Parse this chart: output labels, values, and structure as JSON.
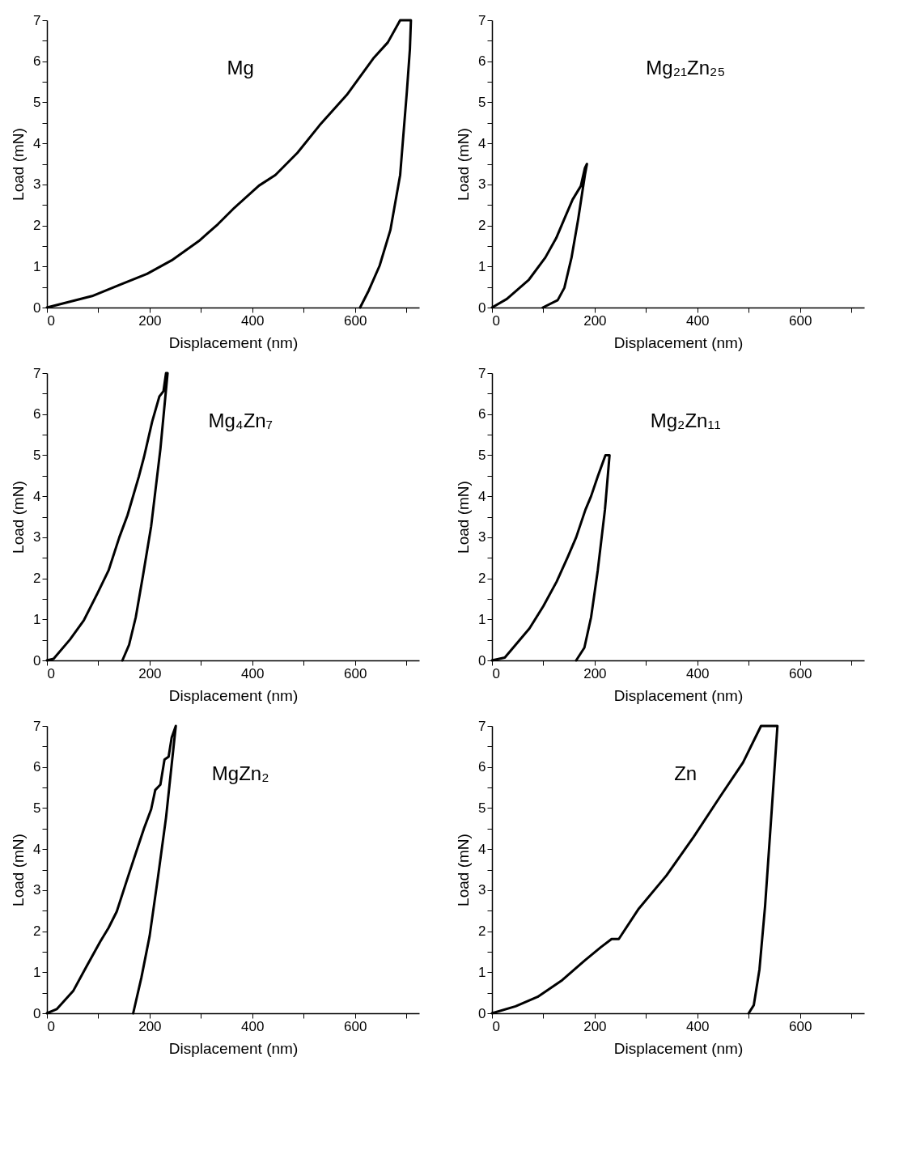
{
  "chart_data": [
    {
      "type": "line",
      "title": "Mg",
      "xlabel": "Displacement (nm)",
      "ylabel": "Load (mN)",
      "xlim": [
        0,
        725
      ],
      "ylim": [
        0,
        7
      ],
      "xticks": [
        0,
        {
          "value": 100,
          "label": null
        },
        200,
        {
          "value": 300,
          "label": null
        },
        400,
        {
          "value": 500,
          "label": null
        },
        600,
        {
          "value": 700,
          "label": null
        }
      ],
      "yticks": [
        0,
        {
          "value": 0.5,
          "label": null
        },
        1,
        {
          "value": 1.5,
          "label": null
        },
        2,
        {
          "value": 2.5,
          "label": null
        },
        3,
        {
          "value": 3.5,
          "label": null
        },
        4,
        {
          "value": 4.5,
          "label": null
        },
        5,
        {
          "value": 5.5,
          "label": null
        },
        6,
        {
          "value": 6.5,
          "label": null
        },
        7
      ],
      "x": [
        0,
        88,
        141,
        195,
        243,
        296,
        333,
        365,
        413,
        445,
        488,
        531,
        584,
        637,
        664,
        688,
        709,
        707,
        701,
        688,
        669,
        648,
        627,
        610
      ],
      "series": [
        {
          "color": "#000000",
          "values": [
            0,
            0.28,
            0.55,
            0.82,
            1.15,
            1.62,
            2.03,
            2.43,
            2.97,
            3.23,
            3.77,
            4.44,
            5.18,
            6.09,
            6.46,
            7,
            7,
            6.3,
            5.25,
            3.23,
            1.89,
            1.02,
            0.42,
            0
          ]
        }
      ]
    },
    {
      "type": "line",
      "title": "Mg₂₁Zn₂₅",
      "xlabel": "Displacement (nm)",
      "ylabel": "Load (mN)",
      "xlim": [
        0,
        725
      ],
      "ylim": [
        0,
        7
      ],
      "xticks": [
        0,
        {
          "value": 100,
          "label": null
        },
        200,
        {
          "value": 300,
          "label": null
        },
        400,
        {
          "value": 500,
          "label": null
        },
        600,
        {
          "value": 700,
          "label": null
        }
      ],
      "yticks": [
        0,
        {
          "value": 0.5,
          "label": null
        },
        1,
        {
          "value": 1.5,
          "label": null
        },
        2,
        {
          "value": 2.5,
          "label": null
        },
        3,
        {
          "value": 3.5,
          "label": null
        },
        4,
        {
          "value": 4.5,
          "label": null
        },
        5,
        {
          "value": 5.5,
          "label": null
        },
        6,
        {
          "value": 6.5,
          "label": null
        },
        7
      ],
      "x": [
        0,
        29,
        72,
        104,
        125,
        141,
        157,
        173,
        181,
        185,
        181,
        168,
        155,
        141,
        128,
        99
      ],
      "series": [
        {
          "color": "#000000",
          "values": [
            0,
            0.21,
            0.68,
            1.22,
            1.69,
            2.16,
            2.63,
            2.96,
            3.4,
            3.5,
            3.23,
            2.16,
            1.22,
            0.48,
            0.18,
            0
          ]
        }
      ]
    },
    {
      "type": "line",
      "title": "Mg₄Zn₇",
      "xlabel": "Displacement (nm)",
      "ylabel": "Load (mN)",
      "xlim": [
        0,
        725
      ],
      "ylim": [
        0,
        7
      ],
      "xticks": [
        0,
        {
          "value": 100,
          "label": null
        },
        200,
        {
          "value": 300,
          "label": null
        },
        400,
        {
          "value": 500,
          "label": null
        },
        600,
        {
          "value": 700,
          "label": null
        }
      ],
      "yticks": [
        0,
        {
          "value": 0.5,
          "label": null
        },
        1,
        {
          "value": 1.5,
          "label": null
        },
        2,
        {
          "value": 2.5,
          "label": null
        },
        3,
        {
          "value": 3.5,
          "label": null
        },
        4,
        {
          "value": 4.5,
          "label": null
        },
        5,
        {
          "value": 5.5,
          "label": null
        },
        6,
        {
          "value": 6.5,
          "label": null
        },
        7
      ],
      "x": [
        0,
        13,
        45,
        72,
        99,
        120,
        141,
        157,
        179,
        189,
        205,
        219,
        227,
        232,
        235,
        221,
        203,
        187,
        173,
        160,
        147
      ],
      "series": [
        {
          "color": "#000000",
          "values": [
            0,
            0.04,
            0.51,
            0.98,
            1.65,
            2.19,
            3.0,
            3.54,
            4.48,
            4.95,
            5.82,
            6.43,
            6.56,
            7,
            7,
            5.15,
            3.27,
            2.06,
            1.05,
            0.38,
            0
          ]
        }
      ]
    },
    {
      "type": "line",
      "title": "Mg₂Zn₁₁",
      "xlabel": "Displacement (nm)",
      "ylabel": "Load (mN)",
      "xlim": [
        0,
        725
      ],
      "ylim": [
        0,
        7
      ],
      "xticks": [
        0,
        {
          "value": 100,
          "label": null
        },
        200,
        {
          "value": 300,
          "label": null
        },
        400,
        {
          "value": 500,
          "label": null
        },
        600,
        {
          "value": 700,
          "label": null
        }
      ],
      "yticks": [
        0,
        {
          "value": 0.5,
          "label": null
        },
        1,
        {
          "value": 1.5,
          "label": null
        },
        2,
        {
          "value": 2.5,
          "label": null
        },
        3,
        {
          "value": 3.5,
          "label": null
        },
        4,
        {
          "value": 4.5,
          "label": null
        },
        5,
        {
          "value": 5.5,
          "label": null
        },
        6,
        {
          "value": 6.5,
          "label": null
        },
        7
      ],
      "x": [
        0,
        25,
        46,
        73,
        100,
        126,
        148,
        164,
        182,
        193,
        206,
        221,
        229,
        220,
        206,
        193,
        180,
        164
      ],
      "series": [
        {
          "color": "#000000",
          "values": [
            0,
            0.07,
            0.38,
            0.78,
            1.32,
            1.92,
            2.53,
            3.0,
            3.67,
            4.0,
            4.48,
            5,
            5,
            3.67,
            2.19,
            1.05,
            0.31,
            0
          ]
        }
      ]
    },
    {
      "type": "line",
      "title": "MgZn₂",
      "xlabel": "Displacement (nm)",
      "ylabel": "Load (mN)",
      "xlim": [
        0,
        725
      ],
      "ylim": [
        0,
        7
      ],
      "xticks": [
        0,
        {
          "value": 100,
          "label": null
        },
        200,
        {
          "value": 300,
          "label": null
        },
        400,
        {
          "value": 500,
          "label": null
        },
        600,
        {
          "value": 700,
          "label": null
        }
      ],
      "yticks": [
        0,
        {
          "value": 0.5,
          "label": null
        },
        1,
        {
          "value": 1.5,
          "label": null
        },
        2,
        {
          "value": 2.5,
          "label": null
        },
        3,
        {
          "value": 3.5,
          "label": null
        },
        4,
        {
          "value": 4.5,
          "label": null
        },
        5,
        {
          "value": 5.5,
          "label": null
        },
        6,
        {
          "value": 6.5,
          "label": null
        },
        7
      ],
      "x": [
        0,
        19,
        51,
        77,
        104,
        120,
        136,
        157,
        173,
        189,
        203,
        211,
        221,
        229,
        237,
        243,
        251,
        248,
        232,
        216,
        200,
        184,
        168
      ],
      "series": [
        {
          "color": "#000000",
          "values": [
            0,
            0.1,
            0.54,
            1.14,
            1.75,
            2.08,
            2.48,
            3.29,
            3.9,
            4.5,
            4.97,
            5.44,
            5.57,
            6.18,
            6.25,
            6.72,
            7,
            6.65,
            4.77,
            3.29,
            1.88,
            0.87,
            0
          ]
        }
      ]
    },
    {
      "type": "line",
      "title": "Zn",
      "xlabel": "Displacement (nm)",
      "ylabel": "Load (mN)",
      "xlim": [
        0,
        725
      ],
      "ylim": [
        0,
        7
      ],
      "xticks": [
        0,
        {
          "value": 100,
          "label": null
        },
        200,
        {
          "value": 300,
          "label": null
        },
        400,
        {
          "value": 500,
          "label": null
        },
        600,
        {
          "value": 700,
          "label": null
        }
      ],
      "yticks": [
        0,
        {
          "value": 0.5,
          "label": null
        },
        1,
        {
          "value": 1.5,
          "label": null
        },
        2,
        {
          "value": 2.5,
          "label": null
        },
        3,
        {
          "value": 3.5,
          "label": null
        },
        4,
        {
          "value": 4.5,
          "label": null
        },
        5,
        {
          "value": 5.5,
          "label": null
        },
        6,
        {
          "value": 6.5,
          "label": null
        },
        7
      ],
      "x": [
        0,
        46,
        89,
        137,
        180,
        212,
        233,
        247,
        286,
        340,
        393,
        446,
        489,
        524,
        556,
        545,
        532,
        521,
        510,
        500
      ],
      "series": [
        {
          "color": "#000000",
          "values": [
            0,
            0.17,
            0.4,
            0.81,
            1.28,
            1.61,
            1.81,
            1.81,
            2.55,
            3.36,
            4.3,
            5.31,
            6.11,
            7,
            7,
            4.97,
            2.62,
            1.07,
            0.2,
            0
          ]
        }
      ]
    }
  ]
}
